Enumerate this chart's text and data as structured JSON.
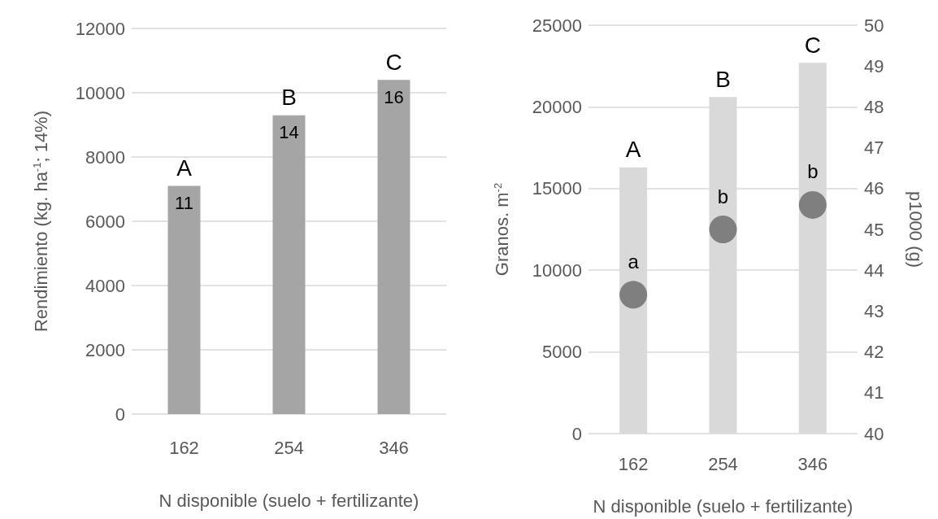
{
  "chart_data": [
    {
      "type": "bar",
      "categories": [
        "162",
        "254",
        "346"
      ],
      "xlabel": "N disponible (suelo + fertilizante)",
      "ylabel": "Rendimiento (kg. ha$^{-1}$; 14%)",
      "ylim": [
        0,
        12000
      ],
      "yticks": [
        0,
        2000,
        4000,
        6000,
        8000,
        10000,
        12000
      ],
      "grid": "y",
      "series": [
        {
          "color": "#a5a5a5",
          "values": [
            7100,
            9300,
            10400
          ],
          "value_labels": [
            "A",
            "B",
            "C"
          ]
        }
      ],
      "annotations": [
        {
          "text": "11",
          "x": "162",
          "y": 7100
        },
        {
          "text": "14",
          "x": "254",
          "y": 9300
        },
        {
          "text": "16",
          "x": "346",
          "y": 10400
        }
      ]
    },
    {
      "type": "bar",
      "categories": [
        "162",
        "254",
        "346"
      ],
      "xlabel": "N disponible (suelo + fertilizante)",
      "ylabel": "Granos. m$^{-2}$",
      "y2label": "p1000 (g)",
      "ylim": [
        0,
        25000
      ],
      "yticks": [
        0,
        5000,
        10000,
        15000,
        20000,
        25000
      ],
      "y2lim": [
        40,
        50
      ],
      "y2ticks": [
        40,
        41,
        42,
        43,
        44,
        45,
        46,
        47,
        48,
        49,
        50
      ],
      "grid": "y",
      "series": [
        {
          "color": "#d9d9d9",
          "values": [
            16300,
            20600,
            22700
          ],
          "value_labels": [
            "A",
            "B",
            "C"
          ]
        },
        {
          "type": "scatter",
          "axis": "y2",
          "marker": "circle",
          "color": "#7f7f7f",
          "values": [
            43.4,
            45.0,
            45.6
          ],
          "value_labels": [
            "a",
            "b",
            "b"
          ]
        }
      ]
    }
  ]
}
